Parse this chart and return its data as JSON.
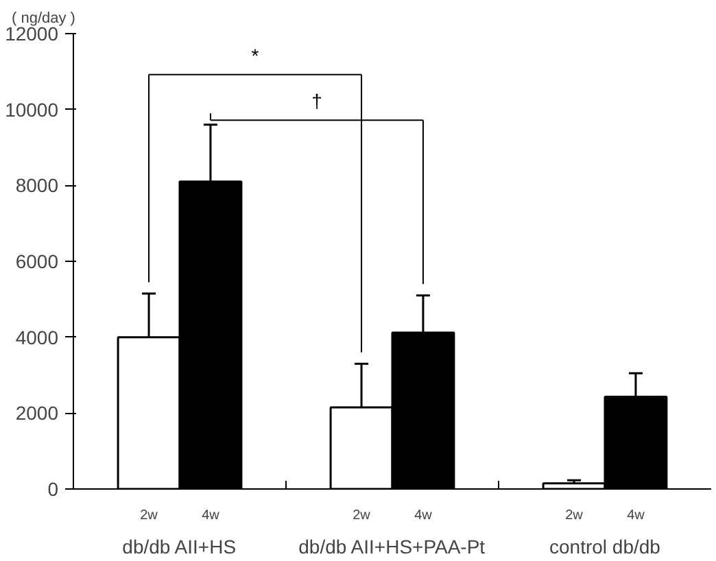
{
  "chart_data": {
    "type": "bar",
    "ylabel": "( ng/day )",
    "categories": [
      "db/db AII+HS",
      "db/db AII+HS+PAA-Pt",
      "control db/db"
    ],
    "series": [
      {
        "name": "2w",
        "color": "#ffffff",
        "values": [
          4000,
          2150,
          150
        ],
        "errors": [
          [
            4000,
            5150
          ],
          [
            2150,
            3300
          ],
          [
            150,
            230
          ]
        ]
      },
      {
        "name": "4w",
        "color": "#000000",
        "values": [
          8100,
          4120,
          2430
        ],
        "errors": [
          [
            8100,
            9600
          ],
          [
            4120,
            5100
          ],
          [
            2430,
            3050
          ]
        ]
      }
    ],
    "ylim": [
      0,
      12000
    ],
    "yticks": [
      0,
      2000,
      4000,
      6000,
      8000,
      10000,
      12000
    ],
    "grid": false,
    "legend": false,
    "annotations": [
      "*",
      "†"
    ]
  }
}
